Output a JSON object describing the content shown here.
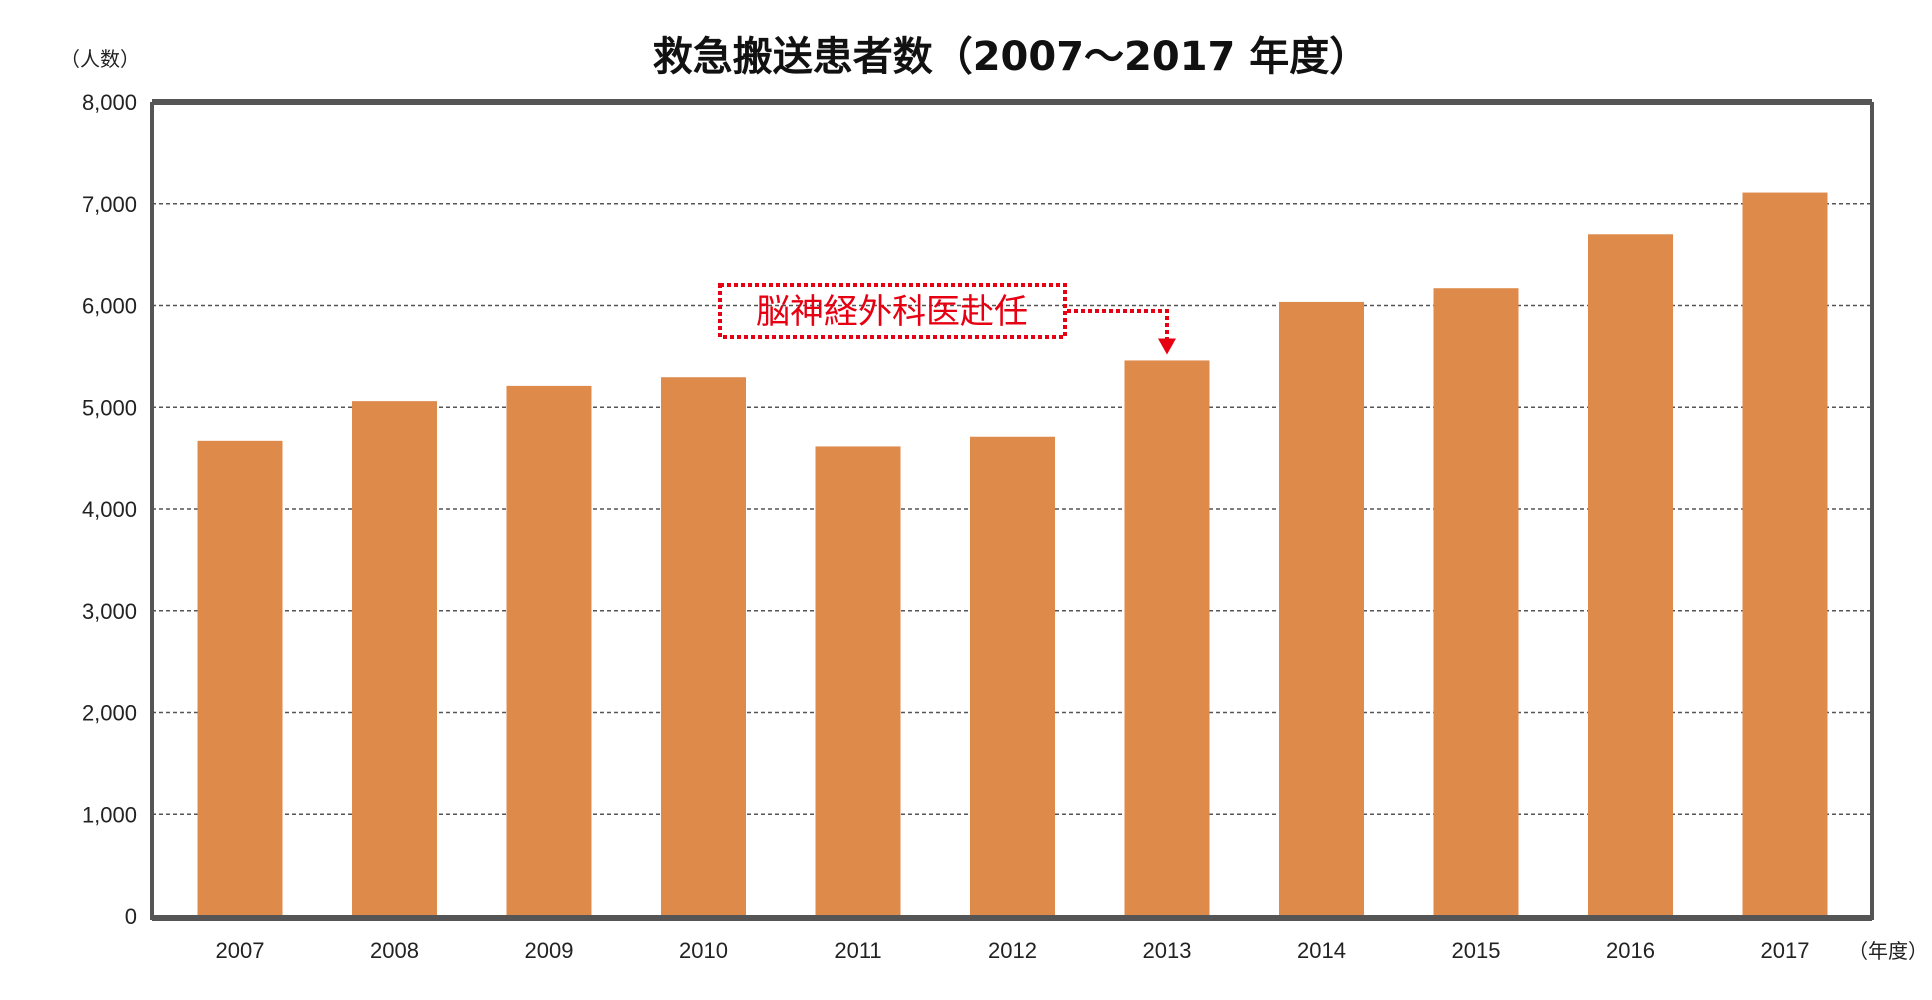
{
  "chart_data": {
    "type": "bar",
    "title": "救急搬送患者数（2007～2017 年度）",
    "ylabel": "（人数）",
    "xlabel": "（年度）",
    "categories": [
      "2007",
      "2008",
      "2009",
      "2010",
      "2011",
      "2012",
      "2013",
      "2014",
      "2015",
      "2016",
      "2017"
    ],
    "values": [
      4670,
      5060,
      5210,
      5295,
      4615,
      4710,
      5460,
      6035,
      6170,
      6700,
      7110
    ],
    "ylim": [
      0,
      8000
    ],
    "yticks": [
      0,
      1000,
      2000,
      3000,
      4000,
      5000,
      6000,
      7000,
      8000
    ],
    "ytick_labels": [
      "0",
      "1,000",
      "2,000",
      "3,000",
      "4,000",
      "5,000",
      "6,000",
      "7,000",
      "8,000"
    ],
    "grid": true,
    "annotation": {
      "text": "脳神経外科医赴任",
      "category": "2013"
    },
    "colors": {
      "bar": "#de8a4b",
      "frame": "#555555",
      "annotation": "#e60012"
    }
  }
}
